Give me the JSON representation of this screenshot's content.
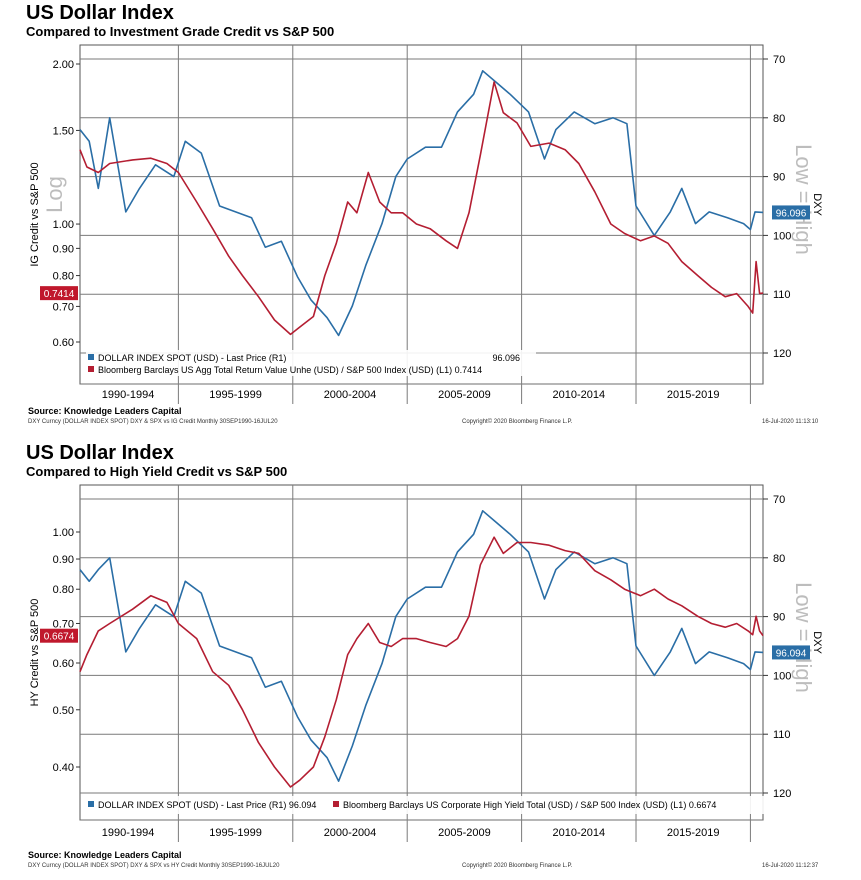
{
  "colors": {
    "dxy": "#2a6ea6",
    "ratio": "#b41e32",
    "grid": "#7a7a7a",
    "label_dxy_bg": "#2a6ea6",
    "label_ratio_bg": "#c0182c",
    "watermark": "#bdbdbd"
  },
  "chart_data": [
    {
      "type": "line",
      "title": "US Dollar Index",
      "subtitle": "Compared to Investment Grade Credit vs S&P 500",
      "left_axis_label": "IG Credit vs S&P 500",
      "right_axis_label": "DXY",
      "left_scale": "log",
      "left_ylim": [
        0.55,
        2.1
      ],
      "left_ticks": [
        "2.00",
        "1.50",
        "1.00",
        "0.90",
        "0.80",
        "0.70",
        "0.60"
      ],
      "right_ylim": [
        70,
        122
      ],
      "right_ticks": [
        "70",
        "80",
        "90",
        "100",
        "110",
        "120"
      ],
      "right_inverted": true,
      "watermark_left": "Log",
      "watermark_right": "Low = High",
      "x_range": [
        1990.7,
        2020.55
      ],
      "x_tick_labels": [
        "1990-1994",
        "1995-1999",
        "2000-2004",
        "2005-2009",
        "2010-2014",
        "2015-2019"
      ],
      "last_value_labels": {
        "ratio": "0.7414",
        "dxy": "96.096"
      },
      "legend": [
        {
          "text": "DOLLAR INDEX SPOT (USD) - Last Price (R1)",
          "value": "96.096"
        },
        {
          "text": "Bloomberg Barclays US Agg Total Return Value Unhe (USD) / S&P 500 Index (USD) (L1) 0.7414",
          "value": ""
        }
      ],
      "series": [
        {
          "name": "DOLLAR INDEX SPOT (USD) - Last Price (R1)",
          "axis": "right",
          "x": [
            1990.7,
            1991.1,
            1991.5,
            1992.0,
            1992.7,
            1993.3,
            1994.0,
            1994.8,
            1995.3,
            1996.0,
            1996.8,
            1997.5,
            1998.2,
            1998.8,
            1999.5,
            2000.2,
            2000.8,
            2001.5,
            2002.0,
            2002.6,
            2003.2,
            2003.9,
            2004.5,
            2005.0,
            2005.8,
            2006.5,
            2007.2,
            2007.9,
            2008.3,
            2008.9,
            2009.5,
            2010.3,
            2011.0,
            2011.5,
            2012.3,
            2013.2,
            2014.0,
            2014.6,
            2015.0,
            2015.8,
            2016.5,
            2017.0,
            2017.6,
            2018.2,
            2019.0,
            2019.7,
            2020.0,
            2020.2,
            2020.55
          ],
          "values": [
            82,
            84,
            92,
            80,
            96,
            92,
            88,
            90,
            84,
            86,
            95,
            96,
            97,
            102,
            101,
            107,
            111,
            114,
            117,
            112,
            105,
            98,
            90,
            87,
            85,
            85,
            79,
            76,
            72,
            74,
            76,
            79,
            87,
            82,
            79,
            81,
            80,
            81,
            95,
            100,
            96,
            92,
            98,
            96,
            97,
            98,
            99,
            96,
            96.096
          ]
        },
        {
          "name": "Bloomberg Barclays US Agg Total Return Value Unhe (USD) / S&P 500 Index (USD) (L1)",
          "axis": "left",
          "x": [
            1990.7,
            1991.0,
            1991.5,
            1992.0,
            1993.0,
            1993.8,
            1994.5,
            1995.0,
            1995.8,
            1996.5,
            1997.2,
            1997.8,
            1998.5,
            1999.2,
            1999.9,
            2000.3,
            2000.9,
            2001.4,
            2001.9,
            2002.4,
            2002.8,
            2003.3,
            2003.8,
            2004.3,
            2004.8,
            2005.4,
            2006.0,
            2006.7,
            2007.2,
            2007.7,
            2008.2,
            2008.8,
            2009.2,
            2009.8,
            2010.4,
            2011.2,
            2011.9,
            2012.5,
            2013.2,
            2013.9,
            2014.5,
            2015.2,
            2015.8,
            2016.4,
            2017.0,
            2017.7,
            2018.3,
            2018.9,
            2019.4,
            2019.9,
            2020.1,
            2020.25,
            2020.4,
            2020.55
          ],
          "values": [
            1.38,
            1.28,
            1.25,
            1.3,
            1.32,
            1.33,
            1.3,
            1.25,
            1.1,
            0.98,
            0.87,
            0.8,
            0.73,
            0.66,
            0.62,
            0.64,
            0.67,
            0.8,
            0.92,
            1.1,
            1.05,
            1.25,
            1.1,
            1.05,
            1.05,
            1.0,
            0.98,
            0.93,
            0.9,
            1.05,
            1.35,
            1.85,
            1.62,
            1.55,
            1.4,
            1.42,
            1.38,
            1.3,
            1.15,
            1.0,
            0.96,
            0.93,
            0.95,
            0.92,
            0.85,
            0.8,
            0.76,
            0.73,
            0.74,
            0.7,
            0.68,
            0.85,
            0.74,
            0.7414
          ]
        }
      ]
    },
    {
      "type": "line",
      "title": "US Dollar Index",
      "subtitle": "Compared to High Yield Credit vs S&P 500",
      "left_axis_label": "HY Credit vs S&P 500",
      "right_axis_label": "DXY",
      "left_scale": "log",
      "left_ylim": [
        0.36,
        1.12
      ],
      "left_ticks": [
        "1.00",
        "0.90",
        "0.80",
        "0.70",
        "0.60",
        "0.50",
        "0.40"
      ],
      "right_ylim": [
        70,
        121
      ],
      "right_ticks": [
        "70",
        "80",
        "90",
        "100",
        "110",
        "120"
      ],
      "right_inverted": true,
      "watermark_left": "",
      "watermark_right": "Low = High",
      "x_range": [
        1990.7,
        2020.55
      ],
      "x_tick_labels": [
        "1990-1994",
        "1995-1999",
        "2000-2004",
        "2005-2009",
        "2010-2014",
        "2015-2019"
      ],
      "last_value_labels": {
        "ratio": "0.6674",
        "dxy": "96.094"
      },
      "legend": [
        {
          "text": "DOLLAR INDEX SPOT (USD) - Last Price (R1) 96.094",
          "value": ""
        },
        {
          "text": "Bloomberg Barclays US Corporate High Yield Total (USD) / S&P 500 Index (USD) (L1) 0.6674",
          "value": ""
        }
      ],
      "series": [
        {
          "name": "DOLLAR INDEX SPOT (USD) - Last Price (R1)",
          "axis": "right",
          "x": [
            1990.7,
            1991.1,
            1991.5,
            1992.0,
            1992.7,
            1993.3,
            1994.0,
            1994.8,
            1995.3,
            1996.0,
            1996.8,
            1997.5,
            1998.2,
            1998.8,
            1999.5,
            2000.2,
            2000.8,
            2001.5,
            2002.0,
            2002.6,
            2003.2,
            2003.9,
            2004.5,
            2005.0,
            2005.8,
            2006.5,
            2007.2,
            2007.9,
            2008.3,
            2008.9,
            2009.5,
            2010.3,
            2011.0,
            2011.5,
            2012.3,
            2013.2,
            2014.0,
            2014.6,
            2015.0,
            2015.8,
            2016.5,
            2017.0,
            2017.6,
            2018.2,
            2019.0,
            2019.7,
            2020.0,
            2020.2,
            2020.55
          ],
          "values": [
            82,
            84,
            82,
            80,
            96,
            92,
            88,
            90,
            84,
            86,
            95,
            96,
            97,
            102,
            101,
            107,
            111,
            114,
            118,
            112,
            105,
            98,
            90,
            87,
            85,
            85,
            79,
            76,
            72,
            74,
            76,
            79,
            87,
            82,
            79,
            81,
            80,
            81,
            95,
            100,
            96,
            92,
            98,
            96,
            97,
            98,
            99,
            96,
            96.094
          ]
        },
        {
          "name": "Bloomberg Barclays US Corporate High Yield Total (USD) / S&P 500 Index (USD) (L1)",
          "axis": "left",
          "x": [
            1990.7,
            1991.0,
            1991.5,
            1992.0,
            1993.0,
            1993.8,
            1994.5,
            1995.0,
            1995.8,
            1996.5,
            1997.2,
            1997.8,
            1998.5,
            1999.2,
            1999.9,
            2000.3,
            2000.9,
            2001.4,
            2001.9,
            2002.4,
            2002.8,
            2003.3,
            2003.8,
            2004.3,
            2004.8,
            2005.4,
            2006.0,
            2006.7,
            2007.2,
            2007.7,
            2008.2,
            2008.8,
            2009.2,
            2009.8,
            2010.4,
            2011.2,
            2011.9,
            2012.5,
            2013.2,
            2013.9,
            2014.5,
            2015.2,
            2015.8,
            2016.4,
            2017.0,
            2017.7,
            2018.3,
            2018.9,
            2019.4,
            2019.9,
            2020.1,
            2020.25,
            2020.4,
            2020.55
          ],
          "values": [
            0.58,
            0.62,
            0.68,
            0.7,
            0.74,
            0.78,
            0.76,
            0.7,
            0.66,
            0.58,
            0.55,
            0.5,
            0.44,
            0.4,
            0.37,
            0.38,
            0.4,
            0.45,
            0.52,
            0.62,
            0.66,
            0.7,
            0.65,
            0.64,
            0.66,
            0.66,
            0.65,
            0.64,
            0.66,
            0.72,
            0.88,
            0.98,
            0.92,
            0.96,
            0.96,
            0.95,
            0.93,
            0.92,
            0.86,
            0.83,
            0.8,
            0.78,
            0.8,
            0.77,
            0.75,
            0.72,
            0.7,
            0.69,
            0.7,
            0.68,
            0.67,
            0.72,
            0.68,
            0.6674
          ]
        }
      ]
    }
  ],
  "footers": [
    {
      "source": "Source: Knowledge Leaders Capital",
      "left": "DXY Curncy (DOLLAR INDEX SPOT) DXY & SPX vs IG Credit  Monthly 30SEP1990-16JUL20",
      "center": "Copyright© 2020 Bloomberg Finance L.P.",
      "right": "16-Jul-2020 11:13:10"
    },
    {
      "source": "Source: Knowledge Leaders Capital",
      "left": "DXY Curncy (DOLLAR INDEX SPOT) DXY & SPX vs HY Credit  Monthly 30SEP1990-16JUL20",
      "center": "Copyright© 2020 Bloomberg Finance L.P.",
      "right": "16-Jul-2020 11:12:37"
    }
  ]
}
